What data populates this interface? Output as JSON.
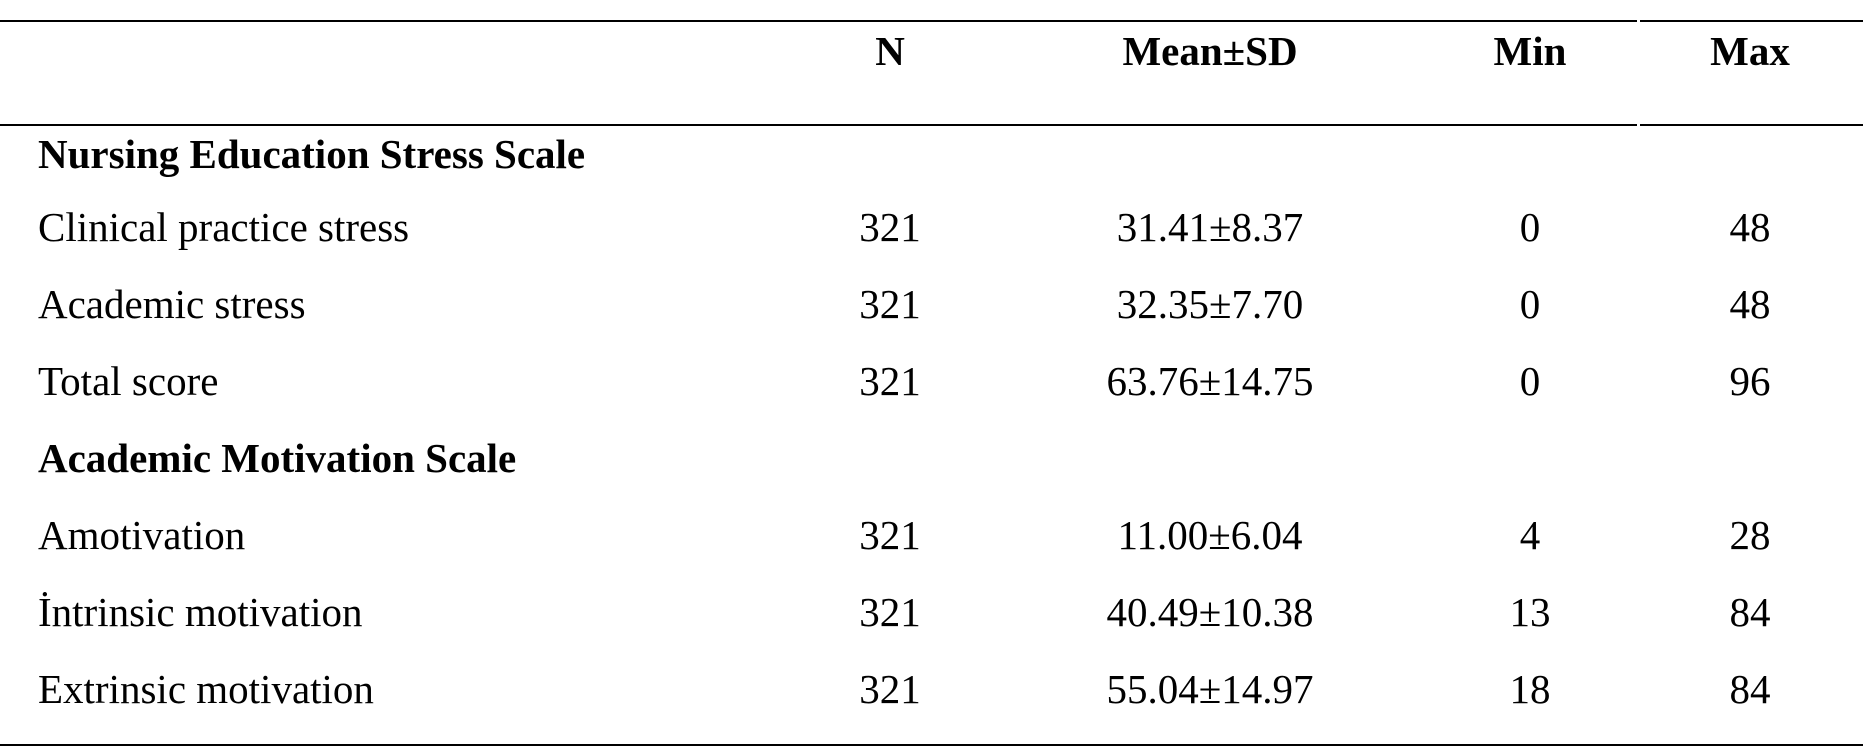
{
  "table": {
    "headers": {
      "n": "N",
      "mean_sd": "Mean±SD",
      "min": "Min",
      "max": "Max"
    },
    "sections": [
      {
        "title": "Nursing Education Stress Scale",
        "rows": [
          {
            "label": "Clinical practice stress",
            "n": "321",
            "mean_sd": "31.41±8.37",
            "min": "0",
            "max": "48"
          },
          {
            "label": "Academic stress",
            "n": "321",
            "mean_sd": "32.35±7.70",
            "min": "0",
            "max": "48"
          },
          {
            "label": "Total score",
            "n": "321",
            "mean_sd": "63.76±14.75",
            "min": "0",
            "max": "96"
          }
        ]
      },
      {
        "title": "Academic Motivation Scale",
        "rows": [
          {
            "label": "Amotivation",
            "n": "321",
            "mean_sd": "11.00±6.04",
            "min": "4",
            "max": "28"
          },
          {
            "label": "İntrinsic motivation",
            "n": "321",
            "mean_sd": "40.49±10.38",
            "min": "13",
            "max": "84"
          },
          {
            "label": "Extrinsic motivation",
            "n": "321",
            "mean_sd": "55.04±14.97",
            "min": "18",
            "max": "84"
          }
        ]
      }
    ]
  }
}
